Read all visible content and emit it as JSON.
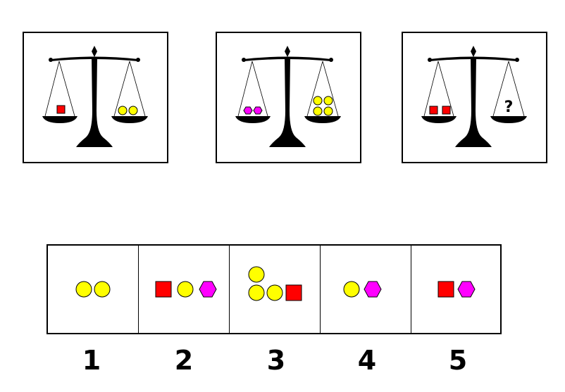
{
  "colors": {
    "square": "#ff0000",
    "circle": "#ffff00",
    "hexagon": "#ff00ff",
    "outline": "#000000"
  },
  "puzzle": {
    "scales": [
      {
        "left": [
          "square"
        ],
        "right": [
          "circle",
          "circle"
        ]
      },
      {
        "left": [
          "hexagon",
          "hexagon"
        ],
        "right": [
          "circle",
          "circle",
          "circle",
          "circle"
        ]
      },
      {
        "left": [
          "square",
          "square"
        ],
        "right": [
          "unknown"
        ]
      }
    ],
    "unknown_symbol": "?"
  },
  "options": [
    {
      "number": "1",
      "shapes": [
        "circle",
        "circle"
      ]
    },
    {
      "number": "2",
      "shapes": [
        "square",
        "circle",
        "hexagon"
      ]
    },
    {
      "number": "3",
      "shapes": [
        "circle",
        "circle",
        "circle",
        "square"
      ]
    },
    {
      "number": "4",
      "shapes": [
        "circle",
        "hexagon"
      ]
    },
    {
      "number": "5",
      "shapes": [
        "square",
        "hexagon"
      ]
    }
  ]
}
